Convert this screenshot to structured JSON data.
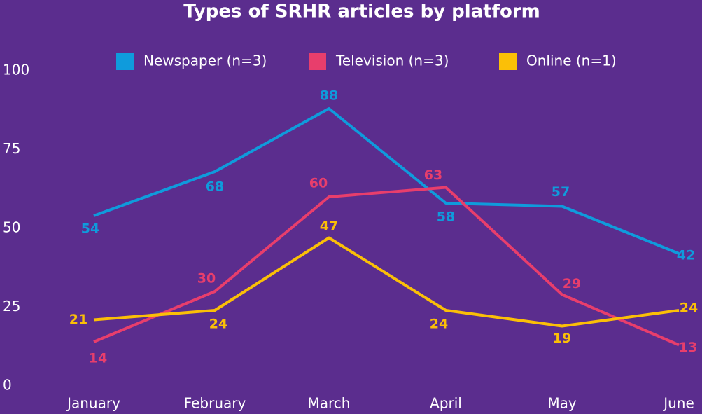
{
  "chart_data": {
    "type": "line",
    "title": "Types of SRHR articles by platform",
    "categories": [
      "January",
      "February",
      "March",
      "April",
      "May",
      "June"
    ],
    "series": [
      {
        "name": "Newspaper (n=3)",
        "color": "#0f9bdc",
        "values": [
          54,
          68,
          88,
          58,
          57,
          42
        ]
      },
      {
        "name": "Television (n=3)",
        "color": "#e83e6c",
        "values": [
          14,
          30,
          60,
          63,
          29,
          13
        ]
      },
      {
        "name": "Online (n=1)",
        "color": "#fbbf07",
        "values": [
          21,
          24,
          47,
          24,
          19,
          24
        ]
      }
    ],
    "ylim": [
      0,
      100
    ],
    "yticks": [
      0,
      25,
      50,
      75,
      100
    ],
    "grid": false,
    "legend": "top"
  }
}
